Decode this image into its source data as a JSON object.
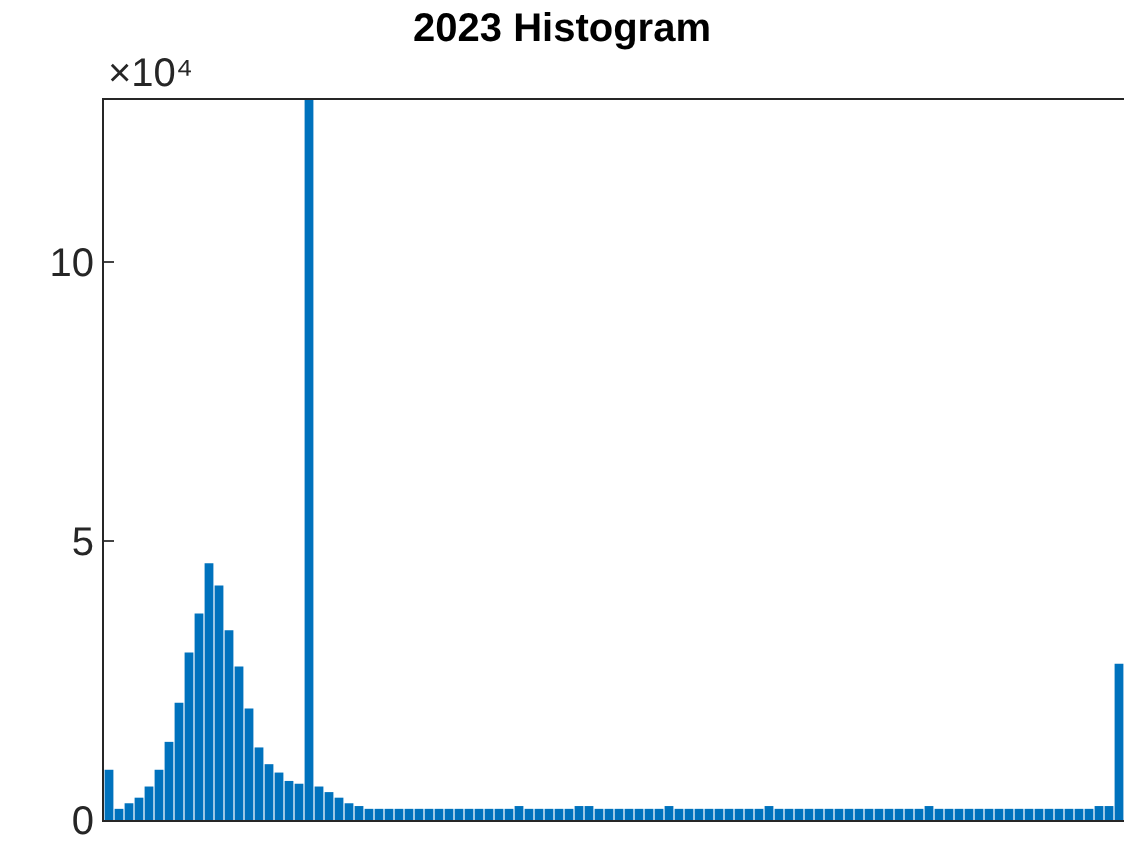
{
  "chart_data": {
    "type": "bar",
    "title": "2023 Histogram",
    "annotations": [
      "×10⁴"
    ],
    "categories": [
      null,
      null,
      null,
      null,
      null,
      null,
      null,
      null,
      null,
      null,
      null,
      null,
      null,
      null,
      null,
      null,
      null,
      null,
      null,
      null,
      null,
      null,
      null,
      null,
      null,
      null,
      null,
      null,
      null,
      null,
      null,
      null,
      null,
      null,
      null,
      null,
      null,
      null,
      null,
      null,
      null,
      null,
      null,
      null,
      null,
      null,
      null,
      null,
      null,
      null,
      null,
      null,
      null,
      null,
      null,
      null,
      null,
      null,
      null,
      null,
      null,
      null,
      null,
      null,
      null,
      null,
      null,
      null,
      null,
      null,
      null,
      null,
      null,
      null,
      null,
      null,
      null,
      null,
      null,
      null,
      null,
      null,
      null,
      null,
      null,
      null,
      null,
      null,
      null,
      null,
      null,
      null,
      null,
      null,
      null,
      null,
      null,
      null,
      null,
      null,
      null,
      null
    ],
    "values": [
      0.9,
      0.2,
      0.3,
      0.4,
      0.6,
      0.9,
      1.4,
      2.1,
      3.0,
      3.7,
      4.6,
      4.2,
      3.4,
      2.75,
      2.0,
      1.3,
      1.0,
      0.85,
      0.7,
      0.65,
      12.9,
      0.6,
      0.5,
      0.4,
      0.3,
      0.25,
      0.2,
      0.2,
      0.2,
      0.2,
      0.2,
      0.2,
      0.2,
      0.2,
      0.2,
      0.2,
      0.2,
      0.2,
      0.2,
      0.2,
      0.2,
      0.25,
      0.2,
      0.2,
      0.2,
      0.2,
      0.2,
      0.25,
      0.25,
      0.2,
      0.2,
      0.2,
      0.2,
      0.2,
      0.2,
      0.2,
      0.25,
      0.2,
      0.2,
      0.2,
      0.2,
      0.2,
      0.2,
      0.2,
      0.2,
      0.2,
      0.25,
      0.2,
      0.2,
      0.2,
      0.2,
      0.2,
      0.2,
      0.2,
      0.2,
      0.2,
      0.2,
      0.2,
      0.2,
      0.2,
      0.2,
      0.2,
      0.25,
      0.2,
      0.2,
      0.2,
      0.2,
      0.2,
      0.2,
      0.2,
      0.2,
      0.2,
      0.2,
      0.2,
      0.2,
      0.2,
      0.2,
      0.2,
      0.2,
      0.25,
      0.25,
      2.8
    ],
    "color": "#0072bd",
    "ylim": [
      0,
      12.9
    ],
    "yticks": [
      0,
      5,
      10
    ],
    "tick_labels": "y"
  }
}
